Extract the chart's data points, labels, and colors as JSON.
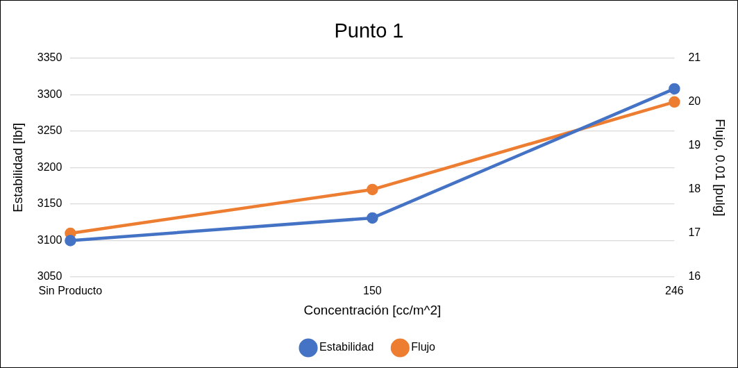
{
  "chart_data": {
    "type": "line",
    "title": "Punto 1",
    "xlabel": "Concentración [cc/m^2]",
    "ylabel": "Estabilidad [lbf]",
    "y2label": "Flujo, 0.01 [pulg]",
    "categories": [
      "Sin Producto",
      "150",
      "246"
    ],
    "series": [
      {
        "name": "Estabilidad",
        "color": "#4472c4",
        "values": [
          3100,
          3131,
          3308
        ]
      },
      {
        "name": "Flujo",
        "color": "#ed7d31",
        "values": [
          17,
          18,
          20
        ],
        "axis": "y2"
      }
    ],
    "ylim": [
      3050,
      3350
    ],
    "yticks": [
      3050,
      3100,
      3150,
      3200,
      3250,
      3300,
      3350
    ],
    "y2lim": [
      16,
      21
    ],
    "y2ticks": [
      16,
      17,
      18,
      19,
      20,
      21
    ],
    "grid": "y",
    "legend": "bottom",
    "marker": "circle",
    "line_style": "solid"
  }
}
